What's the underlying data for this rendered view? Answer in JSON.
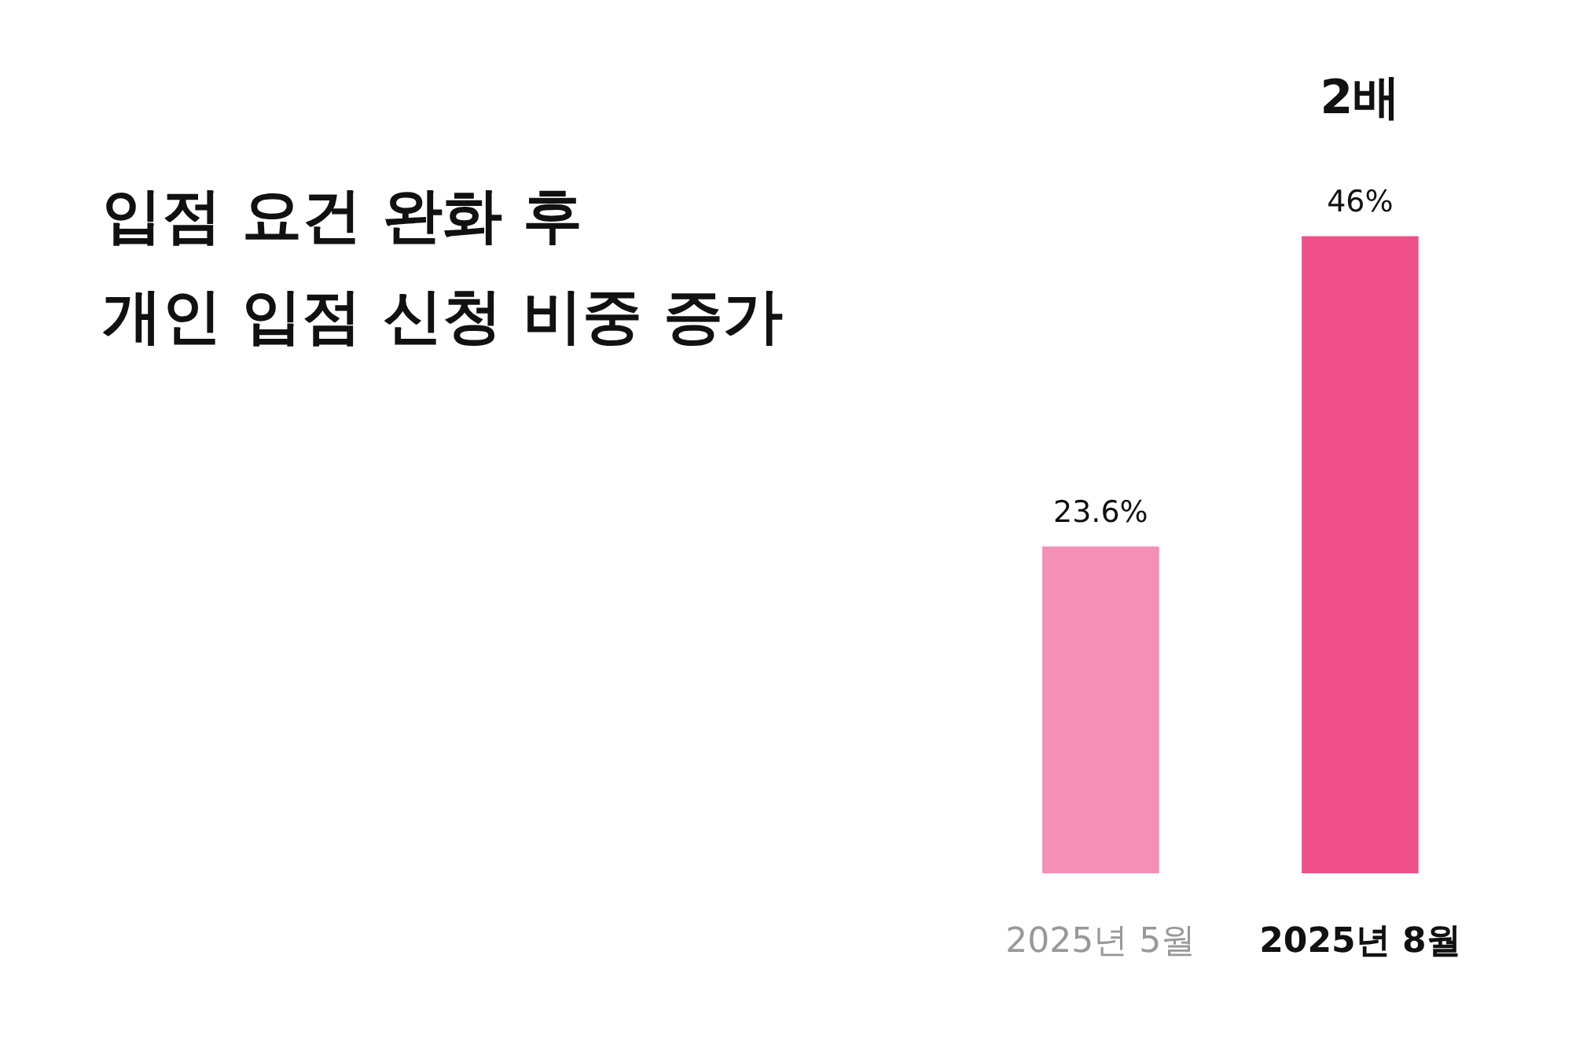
{
  "chart_data": {
    "type": "bar",
    "title": "입점 요건 완화 후\n개인 입점 신청 비중 증가",
    "categories": [
      "2025년 5월",
      "2025년 8월"
    ],
    "values": [
      23.6,
      46
    ],
    "colors": [
      "#f48fb5",
      "#f0508a"
    ],
    "value_labels": [
      "23.6%",
      "46%"
    ],
    "annotations": [
      "2배"
    ],
    "grid": false,
    "tick_labels": "x"
  }
}
